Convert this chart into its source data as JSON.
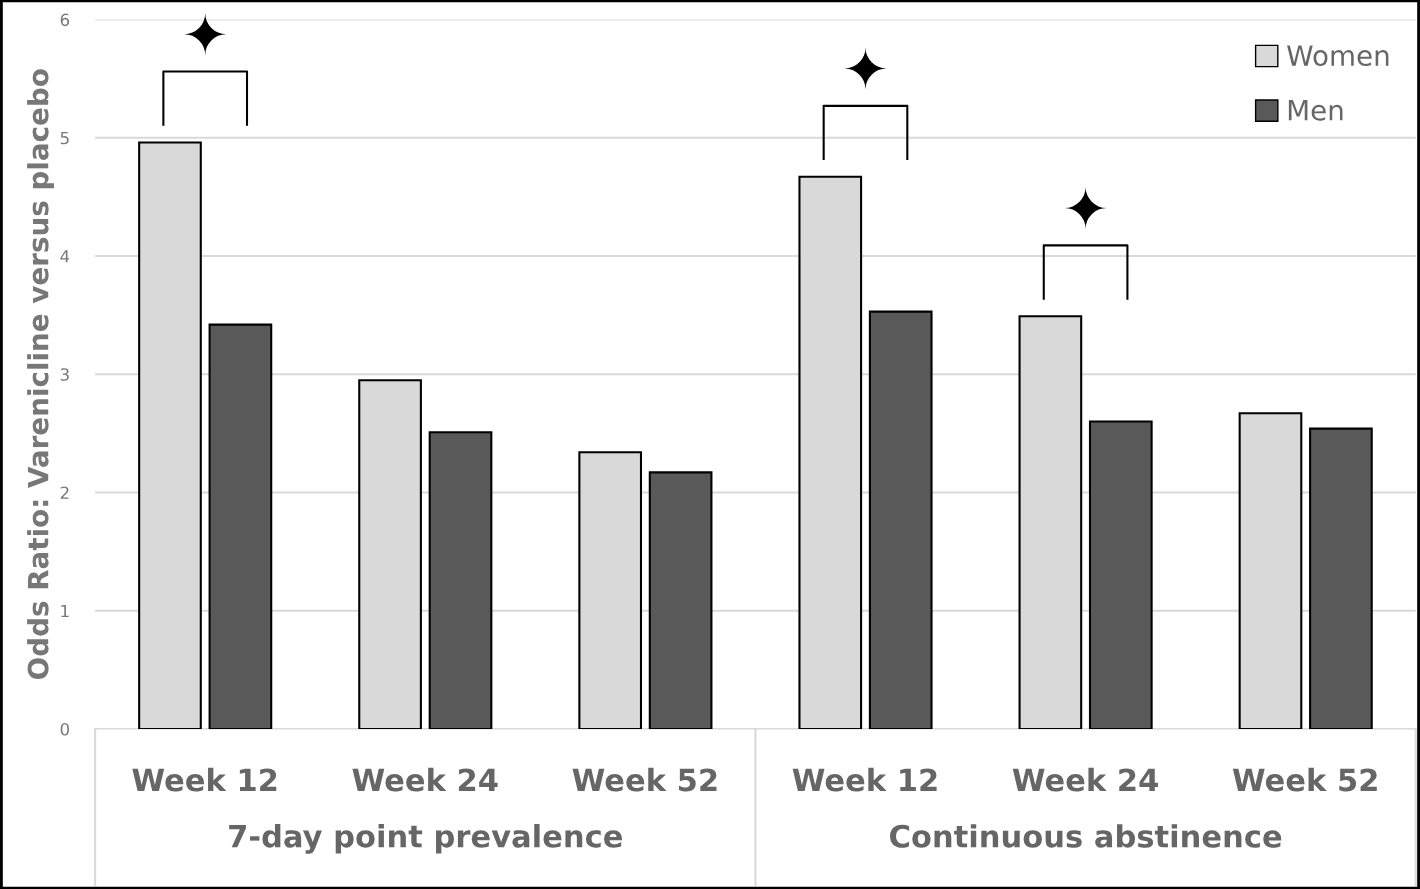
{
  "chart_data": {
    "type": "bar",
    "ylabel": "Odds Ratio: Varenicline versus placebo",
    "categories": [
      "Week 12",
      "Week 24",
      "Week 52",
      "Week 12",
      "Week 24",
      "Week 52"
    ],
    "series": [
      {
        "name": "Women",
        "color": "#d9d9d9",
        "values": [
          4.96,
          2.95,
          2.34,
          4.67,
          3.49,
          2.67
        ]
      },
      {
        "name": "Men",
        "color": "#595959",
        "values": [
          3.42,
          2.51,
          2.17,
          3.53,
          2.6,
          2.54
        ]
      }
    ],
    "ylim": [
      0,
      6
    ],
    "yticks": [
      0,
      1,
      2,
      3,
      4,
      5,
      6
    ],
    "grid": "y",
    "legend": "top right",
    "annotations": [
      "7-day point prevalence",
      "Continuous abstinence",
      "✦",
      "✦",
      "✦"
    ]
  }
}
